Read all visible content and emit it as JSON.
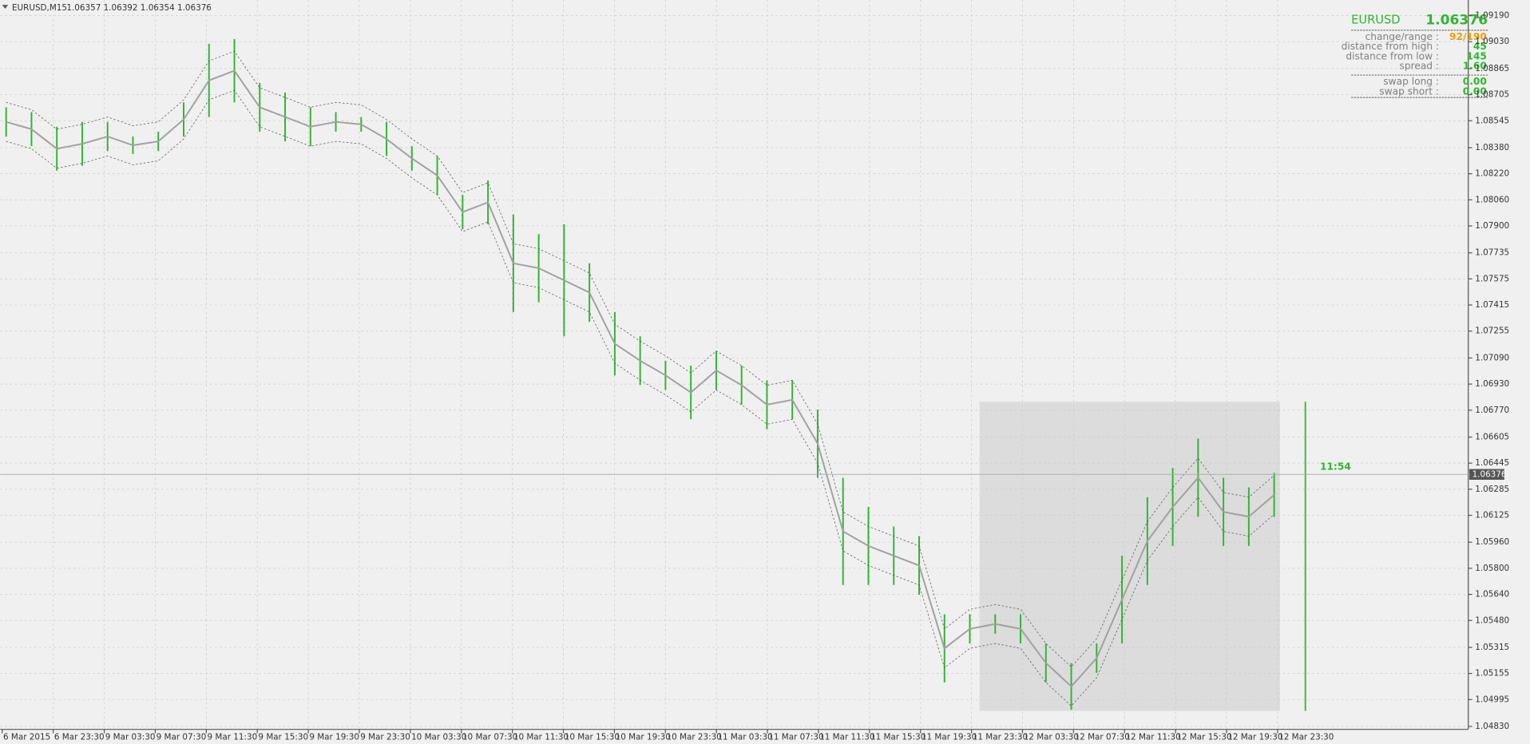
{
  "header": {
    "symbol": "EURUSD,M15",
    "ohlc": "1.06357 1.06392 1.06354 1.06376"
  },
  "price_axis": [
    "1.09190",
    "1.09030",
    "1.08865",
    "1.08705",
    "1.08545",
    "1.08380",
    "1.08220",
    "1.08060",
    "1.07900",
    "1.07735",
    "1.07575",
    "1.07415",
    "1.07255",
    "1.07090",
    "1.06930",
    "1.06770",
    "1.06605",
    "1.06445",
    "1.06285",
    "1.06125",
    "1.05960",
    "1.05800",
    "1.05640",
    "1.05480",
    "1.05315",
    "1.05155",
    "1.04995",
    "1.04830"
  ],
  "current_price": "1.06376",
  "time_axis": [
    "6 Mar 2015",
    "6 Mar 23:30",
    "9 Mar 03:30",
    "9 Mar 07:30",
    "9 Mar 11:30",
    "9 Mar 15:30",
    "9 Mar 19:30",
    "9 Mar 23:30",
    "10 Mar 03:30",
    "10 Mar 07:30",
    "10 Mar 11:30",
    "10 Mar 15:30",
    "10 Mar 19:30",
    "10 Mar 23:30",
    "11 Mar 03:30",
    "11 Mar 07:30",
    "11 Mar 11:30",
    "11 Mar 15:30",
    "11 Mar 19:30",
    "11 Mar 23:30",
    "12 Mar 03:30",
    "12 Mar 07:30",
    "12 Mar 11:30",
    "12 Mar 15:30",
    "12 Mar 19:30",
    "12 Mar 23:30"
  ],
  "timer": "11:54",
  "bars": {
    "high": [
      1.08628,
      1.08598,
      1.08508,
      1.08538,
      1.08538,
      1.08448,
      1.08478,
      1.08658,
      1.09017,
      1.09046,
      1.08777,
      1.08718,
      1.08628,
      1.08598,
      1.08568,
      1.08538,
      1.08389,
      1.08329,
      1.0809,
      1.08179,
      1.0797,
      1.0785,
      1.0791,
      1.07671,
      1.07372,
      1.07223,
      1.07073,
      1.07043,
      1.07133,
      1.07043,
      1.06953,
      1.06953,
      1.06774,
      1.06355,
      1.06176,
      1.06056,
      1.05997,
      1.05518,
      1.05518,
      1.05518,
      1.05518,
      1.05339,
      1.05219,
      1.05339,
      1.05877,
      1.06236,
      1.06415,
      1.06595,
      1.06355,
      1.06296,
      1.06385
    ],
    "low": [
      1.08448,
      1.08389,
      1.08239,
      1.08269,
      1.08359,
      1.08341,
      1.08359,
      1.08448,
      1.08568,
      1.08658,
      1.08478,
      1.08419,
      1.08389,
      1.08478,
      1.08478,
      1.08329,
      1.08239,
      1.0809,
      1.0788,
      1.0791,
      1.07372,
      1.07432,
      1.07223,
      1.07312,
      1.06983,
      1.06924,
      1.06894,
      1.06714,
      1.06894,
      1.06804,
      1.06654,
      1.06714,
      1.06355,
      1.05698,
      1.05698,
      1.05698,
      1.05638,
      1.051,
      1.05339,
      1.05399,
      1.05339,
      1.051,
      1.04932,
      1.05159,
      1.05339,
      1.05698,
      1.05937,
      1.06116,
      1.05937,
      1.05937,
      1.06116
    ]
  },
  "panel": {
    "symbol": "EURUSD",
    "price": "1.06376",
    "rows": [
      [
        "change/range :",
        "92/190"
      ],
      [
        "distance from high :",
        "45"
      ],
      [
        "distance from low :",
        "145"
      ],
      [
        "spread :",
        "1.60"
      ]
    ],
    "swaps": [
      [
        "swap long :",
        "0.00"
      ],
      [
        "swap short :",
        "0.00"
      ]
    ]
  }
}
